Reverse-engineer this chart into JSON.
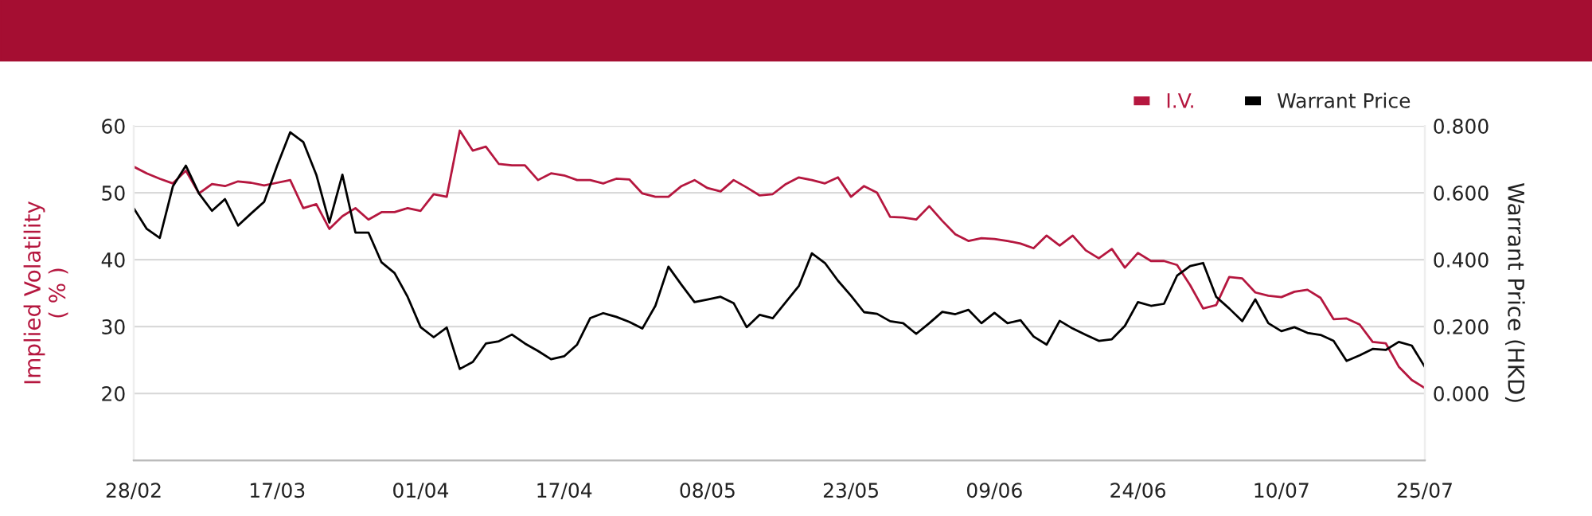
{
  "chart_data": {
    "type": "line",
    "categories": [
      "28/02",
      null,
      null,
      null,
      null,
      null,
      null,
      null,
      null,
      null,
      null,
      "17/03",
      null,
      null,
      null,
      null,
      null,
      null,
      null,
      null,
      null,
      null,
      "01/04",
      null,
      null,
      null,
      null,
      null,
      null,
      null,
      null,
      null,
      null,
      "17/04",
      null,
      null,
      null,
      null,
      null,
      null,
      null,
      null,
      null,
      null,
      "08/05",
      null,
      null,
      null,
      null,
      null,
      null,
      null,
      null,
      null,
      null,
      "23/05",
      null,
      null,
      null,
      null,
      null,
      null,
      null,
      null,
      null,
      null,
      "09/06",
      null,
      null,
      null,
      null,
      null,
      null,
      null,
      null,
      null,
      null,
      "24/06",
      null,
      null,
      null,
      null,
      null,
      null,
      null,
      null,
      null,
      null,
      "10/07",
      null,
      null,
      null,
      null,
      null,
      null,
      null,
      null,
      null,
      null,
      "25/07"
    ],
    "series": [
      {
        "name": "I.V.",
        "color": "#b5173f",
        "values": [
          53.9,
          52.9,
          52.1,
          51.4,
          53.3,
          49.9,
          51.3,
          51.0,
          51.7,
          51.5,
          51.1,
          51.5,
          51.9,
          47.7,
          48.3,
          44.6,
          46.5,
          47.7,
          46.0,
          47.1,
          47.1,
          47.7,
          47.3,
          49.8,
          49.4,
          59.3,
          56.3,
          56.9,
          54.3,
          54.1,
          54.1,
          51.9,
          52.9,
          52.6,
          51.9,
          51.9,
          51.4,
          52.1,
          52.0,
          49.9,
          49.4,
          49.4,
          51.0,
          51.9,
          50.7,
          50.2,
          51.9,
          50.8,
          49.6,
          49.8,
          51.3,
          52.3,
          51.9,
          51.4,
          52.3,
          49.4,
          51.0,
          50.0,
          46.4,
          46.3,
          46.0,
          48.0,
          45.8,
          43.8,
          42.8,
          43.2,
          43.1,
          42.8,
          42.4,
          41.7,
          43.6,
          42.1,
          43.6,
          41.4,
          40.2,
          41.6,
          38.8,
          41.0,
          39.8,
          39.8,
          39.2,
          36.2,
          32.7,
          33.2,
          37.4,
          37.2,
          35.1,
          34.6,
          34.4,
          35.2,
          35.5,
          34.3,
          31.1,
          31.2,
          30.3,
          27.7,
          27.5,
          24.0,
          22.0,
          20.8
        ]
      },
      {
        "name": "Warrant Price",
        "color": "#000000",
        "axis": "y2",
        "values": [
          0.554,
          0.492,
          0.465,
          0.619,
          0.681,
          0.598,
          0.546,
          0.581,
          0.502,
          0.538,
          0.573,
          0.681,
          0.781,
          0.752,
          0.654,
          0.511,
          0.654,
          0.481,
          0.481,
          0.392,
          0.36,
          0.289,
          0.198,
          0.168,
          0.197,
          0.073,
          0.094,
          0.149,
          0.156,
          0.176,
          0.149,
          0.127,
          0.102,
          0.111,
          0.146,
          0.225,
          0.24,
          0.229,
          0.214,
          0.194,
          0.262,
          0.379,
          0.325,
          0.273,
          0.281,
          0.289,
          0.27,
          0.198,
          0.235,
          0.225,
          0.273,
          0.321,
          0.419,
          0.39,
          0.337,
          0.292,
          0.243,
          0.238,
          0.216,
          0.21,
          0.178,
          0.21,
          0.244,
          0.237,
          0.25,
          0.21,
          0.241,
          0.21,
          0.219,
          0.17,
          0.146,
          0.217,
          0.194,
          0.175,
          0.157,
          0.162,
          0.202,
          0.273,
          0.262,
          0.268,
          0.352,
          0.381,
          0.39,
          0.289,
          0.254,
          0.216,
          0.281,
          0.21,
          0.186,
          0.198,
          0.181,
          0.175,
          0.157,
          0.097,
          0.114,
          0.133,
          0.13,
          0.154,
          0.143,
          0.079
        ]
      }
    ],
    "ylabel": "Implied Volatility\n( % )",
    "y2label": "Warrant Price (HKD)",
    "ylim": [
      10,
      60
    ],
    "yticks": [
      20,
      30,
      40,
      50,
      60
    ],
    "y2lim": [
      -0.2,
      0.8
    ],
    "y2ticks": [
      {
        "value": 0,
        "label": "0.000"
      },
      {
        "value": 0.2,
        "label": "0.200"
      },
      {
        "value": 0.4,
        "label": "0.400"
      },
      {
        "value": 0.6,
        "label": "0.600"
      },
      {
        "value": 0.8,
        "label": "0.800"
      }
    ],
    "grid": "y",
    "legend": "top right",
    "marker": "none",
    "line_style": "solid"
  }
}
